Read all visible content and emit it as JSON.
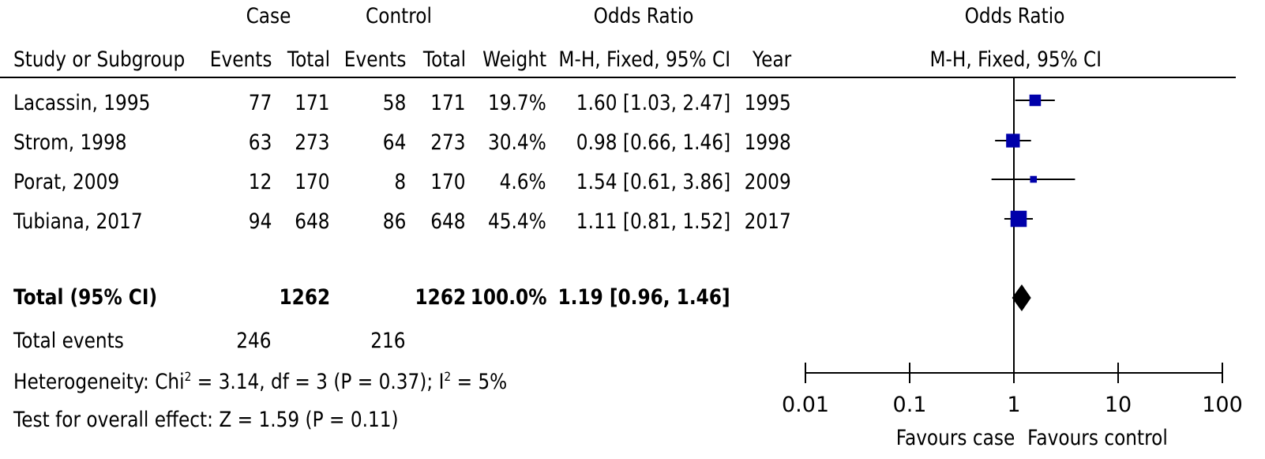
{
  "header": {
    "case_group": "Case",
    "control_group": "Control",
    "or_group": "Odds Ratio",
    "col_study": "Study or Subgroup",
    "col_case_events": "Events",
    "col_case_total": "Total",
    "col_control_events": "Events",
    "col_control_total": "Total",
    "col_weight": "Weight",
    "col_or": "M-H, Fixed, 95% CI",
    "col_year": "Year",
    "plot_title": "Odds Ratio",
    "plot_subtitle": "M-H, Fixed, 95% CI"
  },
  "studies": [
    {
      "name": "Lacassin, 1995",
      "case_events": "77",
      "case_total": "171",
      "control_events": "58",
      "control_total": "171",
      "weight": "19.7%",
      "or_text": "1.60 [1.03, 2.47]",
      "year": "1995"
    },
    {
      "name": "Strom, 1998",
      "case_events": "63",
      "case_total": "273",
      "control_events": "64",
      "control_total": "273",
      "weight": "30.4%",
      "or_text": "0.98 [0.66, 1.46]",
      "year": "1998"
    },
    {
      "name": "Porat, 2009",
      "case_events": "12",
      "case_total": "170",
      "control_events": "8",
      "control_total": "170",
      "weight": "4.6%",
      "or_text": "1.54 [0.61, 3.86]",
      "year": "2009"
    },
    {
      "name": "Tubiana, 2017",
      "case_events": "94",
      "case_total": "648",
      "control_events": "86",
      "control_total": "648",
      "weight": "45.4%",
      "or_text": "1.11 [0.81, 1.52]",
      "year": "2017"
    }
  ],
  "total": {
    "label": "Total (95% CI)",
    "case_total": "1262",
    "control_total": "1262",
    "weight": "100.0%",
    "or_text": "1.19 [0.96, 1.46]"
  },
  "total_events": {
    "label": "Total events",
    "case": "246",
    "control": "216"
  },
  "heterogeneity": {
    "prefix": "Heterogeneity: Chi",
    "chi_sup": "2",
    "middle": " = 3.14, df = 3 (P = 0.37); I",
    "i_sup": "2",
    "suffix": " = 5%"
  },
  "overall_effect": "Test for overall effect: Z = 1.59 (P = 0.11)",
  "axis": {
    "ticks": [
      "0.01",
      "0.1",
      "1",
      "10",
      "100"
    ],
    "favours_left": "Favours case",
    "favours_right": "Favours control"
  },
  "chart_data": {
    "type": "forest",
    "scale": "log",
    "xlim": [
      0.01,
      100
    ],
    "ticks": [
      0.01,
      0.1,
      1,
      10,
      100
    ],
    "null_line": 1,
    "colors": {
      "study_marker": "#0000aa",
      "pooled_marker": "#000000"
    },
    "series": [
      {
        "name": "Lacassin, 1995",
        "or": 1.6,
        "lower": 1.03,
        "upper": 2.47,
        "weight": 19.7
      },
      {
        "name": "Strom, 1998",
        "or": 0.98,
        "lower": 0.66,
        "upper": 1.46,
        "weight": 30.4
      },
      {
        "name": "Porat, 2009",
        "or": 1.54,
        "lower": 0.61,
        "upper": 3.86,
        "weight": 4.6
      },
      {
        "name": "Tubiana, 2017",
        "or": 1.11,
        "lower": 0.81,
        "upper": 1.52,
        "weight": 45.4
      }
    ],
    "pooled": {
      "or": 1.19,
      "lower": 0.96,
      "upper": 1.46
    }
  }
}
